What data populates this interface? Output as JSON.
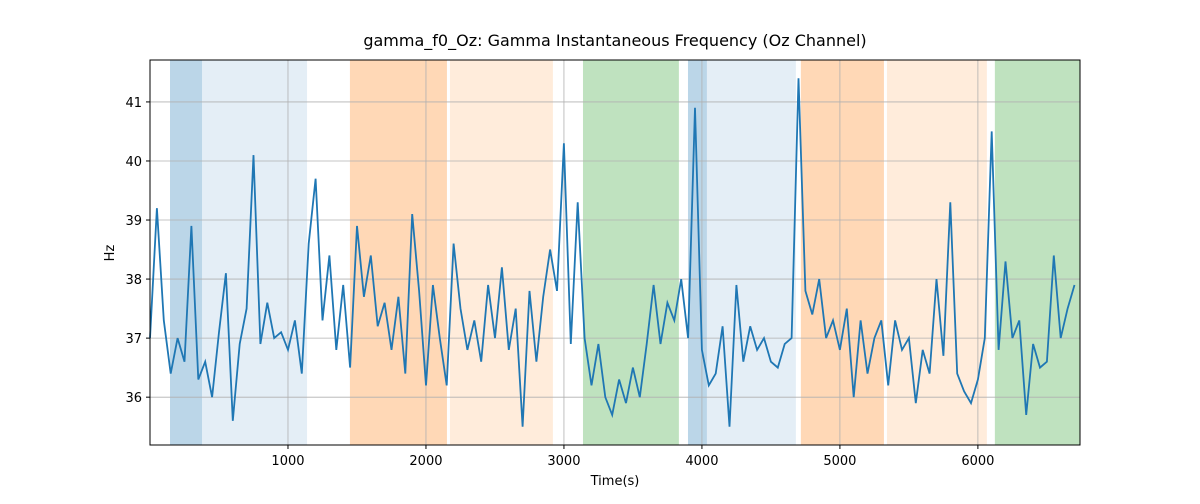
{
  "chart_data": {
    "type": "line",
    "title": "gamma_f0_Oz: Gamma Instantaneous Frequency (Oz Channel)",
    "xlabel": "Time(s)",
    "ylabel": "Hz",
    "xlim": [
      0,
      6740
    ],
    "ylim": [
      35.19,
      41.71
    ],
    "xticks": [
      1000,
      2000,
      3000,
      4000,
      5000,
      6000
    ],
    "yticks": [
      36,
      37,
      38,
      39,
      40,
      41
    ],
    "grid": true,
    "spans": [
      {
        "xmin": 145,
        "xmax": 377,
        "color": "#1f77b4",
        "alpha": 0.3
      },
      {
        "xmin": 377,
        "xmax": 1138,
        "color": "#1f77b4",
        "alpha": 0.12
      },
      {
        "xmin": 1449,
        "xmax": 2152,
        "color": "#ff7f0e",
        "alpha": 0.3
      },
      {
        "xmin": 2174,
        "xmax": 2920,
        "color": "#ff7f0e",
        "alpha": 0.15
      },
      {
        "xmin": 3138,
        "xmax": 3833,
        "color": "#2ca02c",
        "alpha": 0.3
      },
      {
        "xmin": 3899,
        "xmax": 4036,
        "color": "#1f77b4",
        "alpha": 0.3
      },
      {
        "xmin": 4036,
        "xmax": 4681,
        "color": "#1f77b4",
        "alpha": 0.12
      },
      {
        "xmin": 4717,
        "xmax": 5319,
        "color": "#ff7f0e",
        "alpha": 0.3
      },
      {
        "xmin": 5341,
        "xmax": 6065,
        "color": "#ff7f0e",
        "alpha": 0.15
      },
      {
        "xmin": 6123,
        "xmax": 6740,
        "color": "#2ca02c",
        "alpha": 0.3
      }
    ],
    "x": [
      0,
      50,
      100,
      150,
      200,
      250,
      300,
      350,
      400,
      450,
      500,
      550,
      600,
      650,
      700,
      750,
      800,
      850,
      900,
      950,
      1000,
      1050,
      1100,
      1150,
      1200,
      1250,
      1300,
      1350,
      1400,
      1450,
      1500,
      1550,
      1600,
      1650,
      1700,
      1750,
      1800,
      1850,
      1900,
      1950,
      2000,
      2050,
      2100,
      2150,
      2200,
      2250,
      2300,
      2350,
      2400,
      2450,
      2500,
      2550,
      2600,
      2650,
      2700,
      2750,
      2800,
      2850,
      2900,
      2950,
      3000,
      3050,
      3100,
      3150,
      3200,
      3250,
      3300,
      3350,
      3400,
      3450,
      3500,
      3550,
      3600,
      3650,
      3700,
      3750,
      3800,
      3850,
      3900,
      3950,
      4000,
      4050,
      4100,
      4150,
      4200,
      4250,
      4300,
      4350,
      4400,
      4450,
      4500,
      4550,
      4600,
      4650,
      4700,
      4750,
      4800,
      4850,
      4900,
      4950,
      5000,
      5050,
      5100,
      5150,
      5200,
      5250,
      5300,
      5350,
      5400,
      5450,
      5500,
      5550,
      5600,
      5650,
      5700,
      5750,
      5800,
      5850,
      5900,
      5950,
      6000,
      6050,
      6100,
      6150,
      6200,
      6250,
      6300,
      6350,
      6400,
      6450,
      6500,
      6550,
      6600,
      6650,
      6700
    ],
    "series": [
      {
        "color": "#1f77b4",
        "values": [
          37.0,
          39.2,
          37.3,
          36.4,
          37.0,
          36.6,
          38.9,
          36.3,
          36.6,
          36.0,
          37.1,
          38.1,
          35.6,
          36.9,
          37.5,
          40.1,
          36.9,
          37.6,
          37.0,
          37.1,
          36.8,
          37.3,
          36.4,
          38.6,
          39.7,
          37.3,
          38.4,
          36.8,
          37.9,
          36.5,
          38.9,
          37.7,
          38.4,
          37.2,
          37.6,
          36.8,
          37.7,
          36.4,
          39.1,
          37.8,
          36.2,
          37.9,
          37.0,
          36.2,
          38.6,
          37.5,
          36.8,
          37.3,
          36.6,
          37.9,
          37.0,
          38.2,
          36.8,
          37.5,
          35.5,
          37.8,
          36.6,
          37.7,
          38.5,
          37.8,
          40.3,
          36.9,
          39.3,
          37.0,
          36.2,
          36.9,
          36.0,
          35.7,
          36.3,
          35.9,
          36.5,
          36.0,
          36.9,
          37.9,
          36.9,
          37.6,
          37.3,
          38.0,
          37.0,
          40.9,
          36.8,
          36.2,
          36.4,
          37.2,
          35.5,
          37.9,
          36.6,
          37.2,
          36.8,
          37.0,
          36.6,
          36.5,
          36.9,
          37.0,
          41.4,
          37.8,
          37.4,
          38.0,
          37.0,
          37.3,
          36.8,
          37.5,
          36.0,
          37.3,
          36.4,
          37.0,
          37.3,
          36.2,
          37.3,
          36.8,
          37.0,
          35.9,
          36.8,
          36.4,
          38.0,
          36.7,
          39.3,
          36.4,
          36.1,
          35.9,
          36.3,
          37.0,
          40.5,
          36.8,
          38.3,
          37.0,
          37.3,
          35.7,
          36.9,
          36.5,
          36.6,
          38.4,
          37.0,
          37.5,
          37.9
        ]
      }
    ]
  }
}
